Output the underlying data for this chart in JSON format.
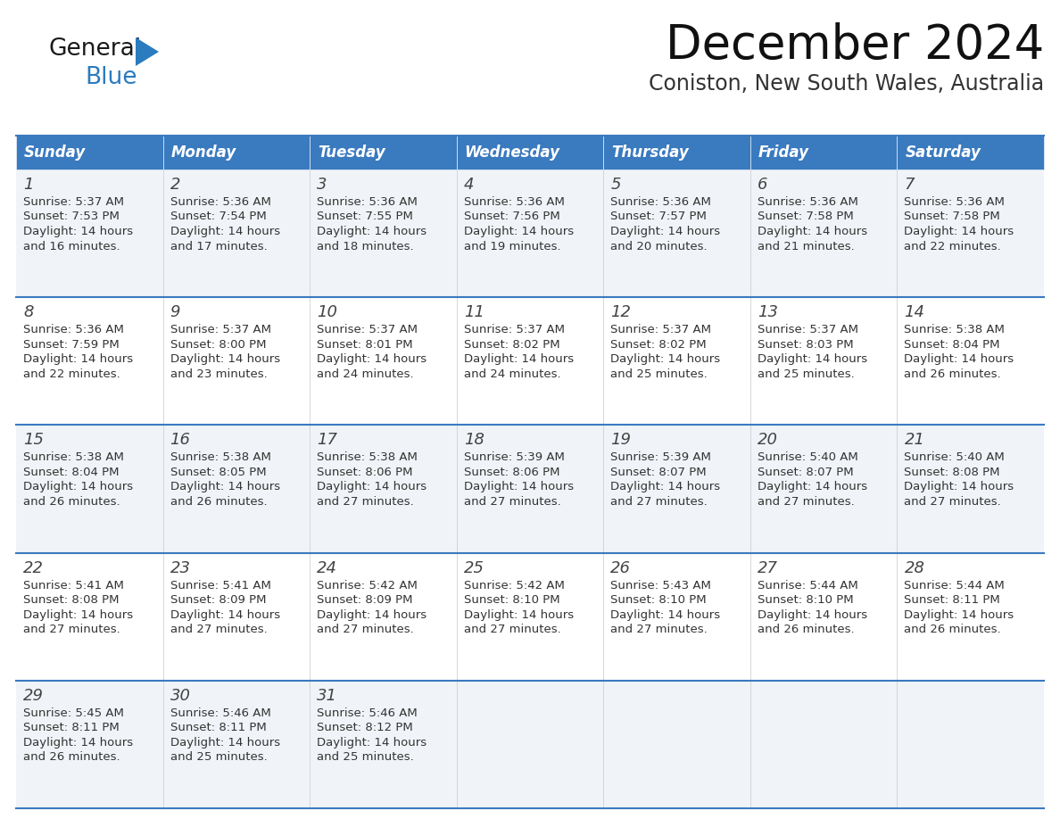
{
  "title": "December 2024",
  "subtitle": "Coniston, New South Wales, Australia",
  "header_bg": "#3a7abf",
  "header_text_color": "#ffffff",
  "cell_bg_odd": "#f0f4f8",
  "cell_bg_even": "#ffffff",
  "border_color": "#3a7abf",
  "day_headers": [
    "Sunday",
    "Monday",
    "Tuesday",
    "Wednesday",
    "Thursday",
    "Friday",
    "Saturday"
  ],
  "weeks": [
    [
      {
        "day": 1,
        "sunrise": "5:37 AM",
        "sunset": "7:53 PM",
        "daylight_hours": 14,
        "daylight_mins": 16
      },
      {
        "day": 2,
        "sunrise": "5:36 AM",
        "sunset": "7:54 PM",
        "daylight_hours": 14,
        "daylight_mins": 17
      },
      {
        "day": 3,
        "sunrise": "5:36 AM",
        "sunset": "7:55 PM",
        "daylight_hours": 14,
        "daylight_mins": 18
      },
      {
        "day": 4,
        "sunrise": "5:36 AM",
        "sunset": "7:56 PM",
        "daylight_hours": 14,
        "daylight_mins": 19
      },
      {
        "day": 5,
        "sunrise": "5:36 AM",
        "sunset": "7:57 PM",
        "daylight_hours": 14,
        "daylight_mins": 20
      },
      {
        "day": 6,
        "sunrise": "5:36 AM",
        "sunset": "7:58 PM",
        "daylight_hours": 14,
        "daylight_mins": 21
      },
      {
        "day": 7,
        "sunrise": "5:36 AM",
        "sunset": "7:58 PM",
        "daylight_hours": 14,
        "daylight_mins": 22
      }
    ],
    [
      {
        "day": 8,
        "sunrise": "5:36 AM",
        "sunset": "7:59 PM",
        "daylight_hours": 14,
        "daylight_mins": 22
      },
      {
        "day": 9,
        "sunrise": "5:37 AM",
        "sunset": "8:00 PM",
        "daylight_hours": 14,
        "daylight_mins": 23
      },
      {
        "day": 10,
        "sunrise": "5:37 AM",
        "sunset": "8:01 PM",
        "daylight_hours": 14,
        "daylight_mins": 24
      },
      {
        "day": 11,
        "sunrise": "5:37 AM",
        "sunset": "8:02 PM",
        "daylight_hours": 14,
        "daylight_mins": 24
      },
      {
        "day": 12,
        "sunrise": "5:37 AM",
        "sunset": "8:02 PM",
        "daylight_hours": 14,
        "daylight_mins": 25
      },
      {
        "day": 13,
        "sunrise": "5:37 AM",
        "sunset": "8:03 PM",
        "daylight_hours": 14,
        "daylight_mins": 25
      },
      {
        "day": 14,
        "sunrise": "5:38 AM",
        "sunset": "8:04 PM",
        "daylight_hours": 14,
        "daylight_mins": 26
      }
    ],
    [
      {
        "day": 15,
        "sunrise": "5:38 AM",
        "sunset": "8:04 PM",
        "daylight_hours": 14,
        "daylight_mins": 26
      },
      {
        "day": 16,
        "sunrise": "5:38 AM",
        "sunset": "8:05 PM",
        "daylight_hours": 14,
        "daylight_mins": 26
      },
      {
        "day": 17,
        "sunrise": "5:38 AM",
        "sunset": "8:06 PM",
        "daylight_hours": 14,
        "daylight_mins": 27
      },
      {
        "day": 18,
        "sunrise": "5:39 AM",
        "sunset": "8:06 PM",
        "daylight_hours": 14,
        "daylight_mins": 27
      },
      {
        "day": 19,
        "sunrise": "5:39 AM",
        "sunset": "8:07 PM",
        "daylight_hours": 14,
        "daylight_mins": 27
      },
      {
        "day": 20,
        "sunrise": "5:40 AM",
        "sunset": "8:07 PM",
        "daylight_hours": 14,
        "daylight_mins": 27
      },
      {
        "day": 21,
        "sunrise": "5:40 AM",
        "sunset": "8:08 PM",
        "daylight_hours": 14,
        "daylight_mins": 27
      }
    ],
    [
      {
        "day": 22,
        "sunrise": "5:41 AM",
        "sunset": "8:08 PM",
        "daylight_hours": 14,
        "daylight_mins": 27
      },
      {
        "day": 23,
        "sunrise": "5:41 AM",
        "sunset": "8:09 PM",
        "daylight_hours": 14,
        "daylight_mins": 27
      },
      {
        "day": 24,
        "sunrise": "5:42 AM",
        "sunset": "8:09 PM",
        "daylight_hours": 14,
        "daylight_mins": 27
      },
      {
        "day": 25,
        "sunrise": "5:42 AM",
        "sunset": "8:10 PM",
        "daylight_hours": 14,
        "daylight_mins": 27
      },
      {
        "day": 26,
        "sunrise": "5:43 AM",
        "sunset": "8:10 PM",
        "daylight_hours": 14,
        "daylight_mins": 27
      },
      {
        "day": 27,
        "sunrise": "5:44 AM",
        "sunset": "8:10 PM",
        "daylight_hours": 14,
        "daylight_mins": 26
      },
      {
        "day": 28,
        "sunrise": "5:44 AM",
        "sunset": "8:11 PM",
        "daylight_hours": 14,
        "daylight_mins": 26
      }
    ],
    [
      {
        "day": 29,
        "sunrise": "5:45 AM",
        "sunset": "8:11 PM",
        "daylight_hours": 14,
        "daylight_mins": 26
      },
      {
        "day": 30,
        "sunrise": "5:46 AM",
        "sunset": "8:11 PM",
        "daylight_hours": 14,
        "daylight_mins": 25
      },
      {
        "day": 31,
        "sunrise": "5:46 AM",
        "sunset": "8:12 PM",
        "daylight_hours": 14,
        "daylight_mins": 25
      },
      null,
      null,
      null,
      null
    ]
  ],
  "logo_text_general": "General",
  "logo_text_blue": "Blue",
  "logo_color_general": "#1a1a1a",
  "logo_color_blue": "#2b7bbf",
  "logo_triangle_color": "#2b7bbf",
  "title_fontsize": 38,
  "subtitle_fontsize": 17,
  "header_fontsize": 12,
  "day_num_fontsize": 13,
  "cell_text_fontsize": 9.5
}
